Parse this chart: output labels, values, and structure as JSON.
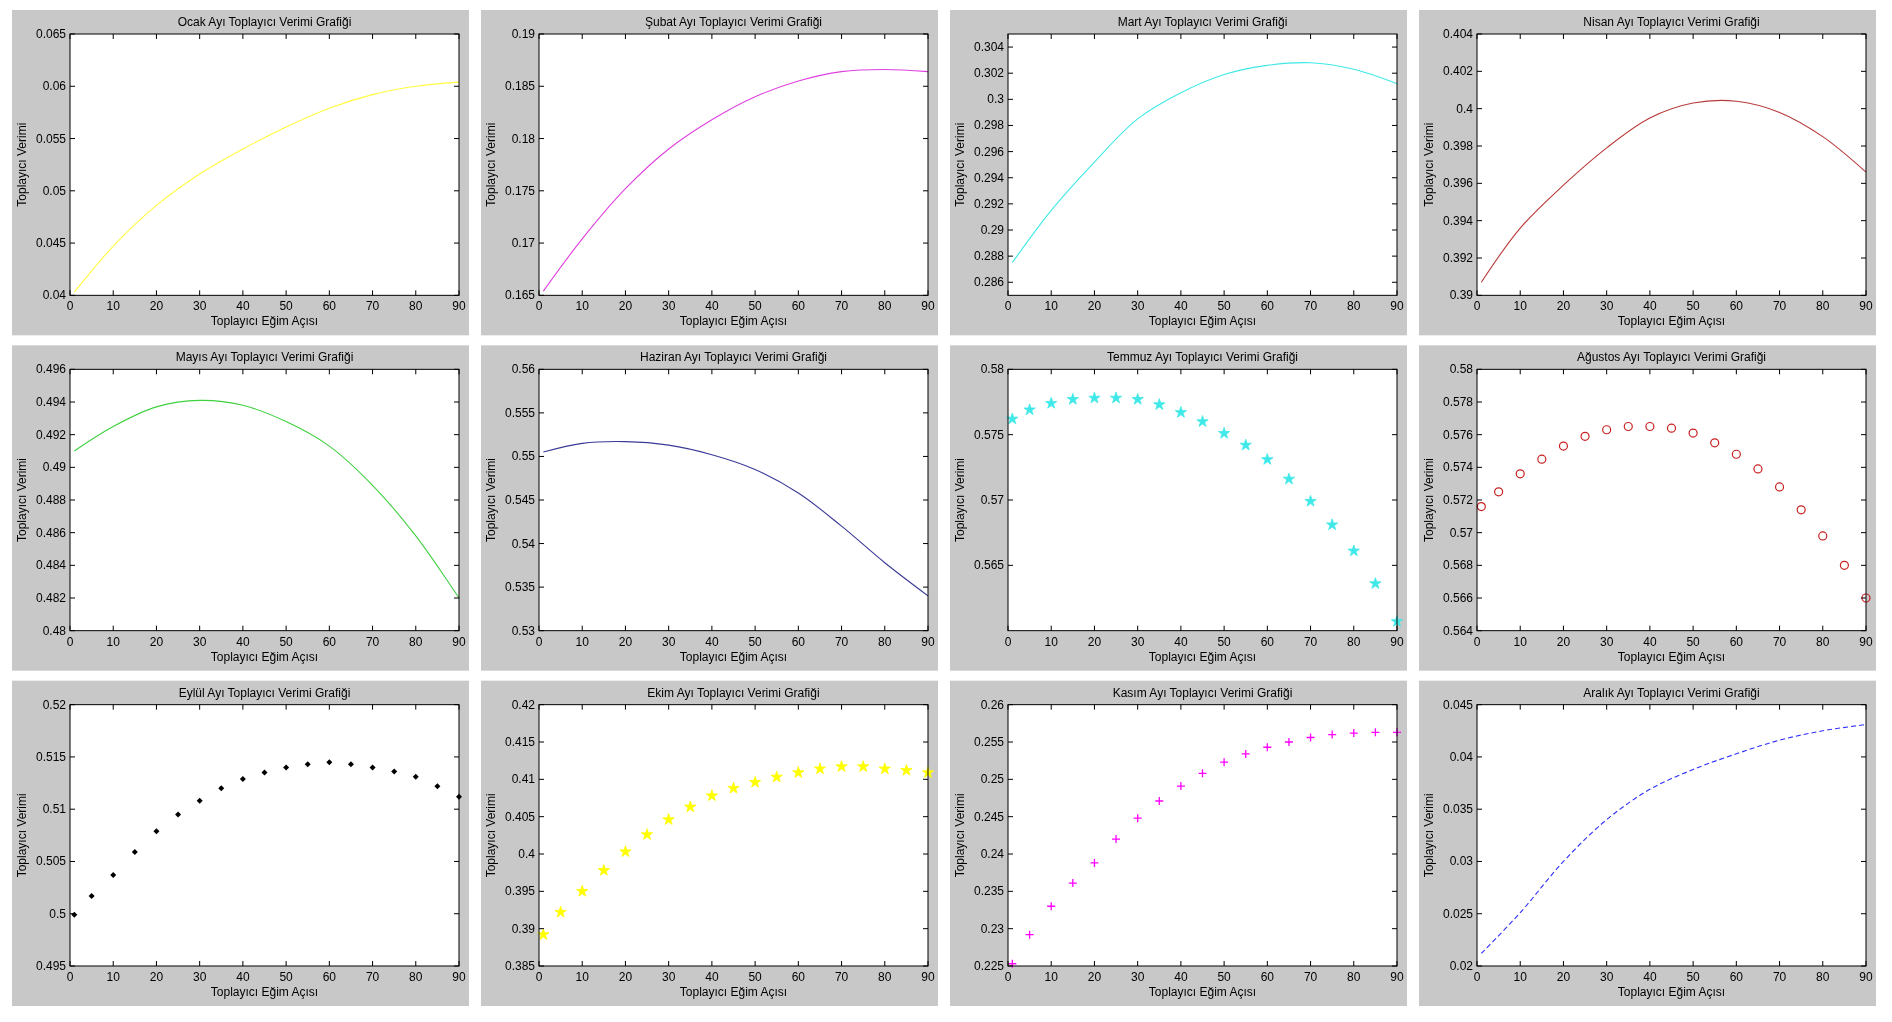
{
  "chart_data": [
    {
      "type": "line",
      "title": "Ocak Ayı Toplayıcı Verimi Grafiği",
      "xlabel": "Toplayıcı Eğim Açısı",
      "ylabel": "Toplayıcı Verimi",
      "x": [
        1,
        10,
        20,
        30,
        40,
        50,
        60,
        70,
        80,
        90
      ],
      "series": [
        {
          "color": "#ffff40",
          "values": [
            0.0403,
            0.0447,
            0.0486,
            0.0516,
            0.054,
            0.0561,
            0.0579,
            0.0592,
            0.06,
            0.0604
          ]
        }
      ],
      "xlim": [
        0,
        90
      ],
      "xticks": [
        0,
        10,
        20,
        30,
        40,
        50,
        60,
        70,
        80,
        90
      ],
      "ylim": [
        0.04,
        0.065
      ],
      "yticks": [
        0.04,
        0.045,
        0.05,
        0.055,
        0.06,
        0.065
      ]
    },
    {
      "type": "line",
      "title": "Şubat Ayı Toplayıcı Verimi Grafiği",
      "xlabel": "Toplayıcı Eğim Açısı",
      "ylabel": "Toplayıcı Verimi",
      "x": [
        1,
        10,
        20,
        30,
        40,
        50,
        60,
        70,
        80,
        90
      ],
      "series": [
        {
          "color": "#e040e0",
          "values": [
            0.1654,
            0.1704,
            0.1752,
            0.179,
            0.1818,
            0.184,
            0.1855,
            0.1864,
            0.1866,
            0.1864
          ]
        }
      ],
      "xlim": [
        0,
        90
      ],
      "xticks": [
        0,
        10,
        20,
        30,
        40,
        50,
        60,
        70,
        80,
        90
      ],
      "ylim": [
        0.165,
        0.19
      ],
      "yticks": [
        0.165,
        0.17,
        0.175,
        0.18,
        0.185,
        0.19
      ]
    },
    {
      "type": "line",
      "title": "Mart Ayı Toplayıcı Verimi Grafiği",
      "xlabel": "Toplayıcı Eğim Açısı",
      "ylabel": "Toplayıcı Verimi",
      "x": [
        1,
        10,
        20,
        30,
        40,
        50,
        60,
        70,
        80,
        90
      ],
      "series": [
        {
          "color": "#40e8e8",
          "values": [
            0.2875,
            0.2915,
            0.2952,
            0.2985,
            0.3005,
            0.3019,
            0.3026,
            0.3028,
            0.3023,
            0.3012
          ]
        }
      ],
      "xlim": [
        0,
        90
      ],
      "xticks": [
        0,
        10,
        20,
        30,
        40,
        50,
        60,
        70,
        80,
        90
      ],
      "ylim": [
        0.285,
        0.305
      ],
      "yticks": [
        0.286,
        0.288,
        0.29,
        0.292,
        0.294,
        0.296,
        0.298,
        0.3,
        0.302,
        0.304
      ]
    },
    {
      "type": "line",
      "title": "Nisan Ayı Toplayıcı Verimi Grafiği",
      "xlabel": "Toplayıcı Eğim Açısı",
      "ylabel": "Toplayıcı Verimi",
      "x": [
        1,
        10,
        20,
        30,
        40,
        50,
        60,
        70,
        80,
        90
      ],
      "series": [
        {
          "color": "#b83a3a",
          "values": [
            0.3907,
            0.3936,
            0.3959,
            0.3979,
            0.3995,
            0.4003,
            0.4004,
            0.3998,
            0.3985,
            0.3966
          ]
        }
      ],
      "xlim": [
        0,
        90
      ],
      "xticks": [
        0,
        10,
        20,
        30,
        40,
        50,
        60,
        70,
        80,
        90
      ],
      "ylim": [
        0.39,
        0.404
      ],
      "yticks": [
        0.39,
        0.392,
        0.394,
        0.396,
        0.398,
        0.4,
        0.402,
        0.404
      ]
    },
    {
      "type": "line",
      "title": "Mayıs Ayı Toplayıcı Verimi Grafiği",
      "xlabel": "Toplayıcı Eğim Açısı",
      "ylabel": "Toplayıcı Verimi",
      "x": [
        1,
        10,
        20,
        30,
        40,
        50,
        60,
        70,
        80,
        90
      ],
      "series": [
        {
          "color": "#40d040",
          "values": [
            0.491,
            0.4925,
            0.4937,
            0.4941,
            0.4938,
            0.4928,
            0.4913,
            0.4889,
            0.4858,
            0.482
          ]
        }
      ],
      "xlim": [
        0,
        90
      ],
      "xticks": [
        0,
        10,
        20,
        30,
        40,
        50,
        60,
        70,
        80,
        90
      ],
      "ylim": [
        0.48,
        0.496
      ],
      "yticks": [
        0.48,
        0.482,
        0.484,
        0.486,
        0.488,
        0.49,
        0.492,
        0.494,
        0.496
      ]
    },
    {
      "type": "line",
      "title": "Haziran Ayı Toplayıcı Verimi Grafiği",
      "xlabel": "Toplayıcı Eğim Açısı",
      "ylabel": "Toplayıcı Verimi",
      "x": [
        1,
        10,
        20,
        30,
        40,
        50,
        60,
        70,
        80,
        90
      ],
      "series": [
        {
          "color": "#3a3a98",
          "values": [
            0.5505,
            0.5515,
            0.5517,
            0.5513,
            0.5502,
            0.5485,
            0.5458,
            0.542,
            0.5378,
            0.534
          ]
        }
      ],
      "xlim": [
        0,
        90
      ],
      "xticks": [
        0,
        10,
        20,
        30,
        40,
        50,
        60,
        70,
        80,
        90
      ],
      "ylim": [
        0.53,
        0.56
      ],
      "yticks": [
        0.53,
        0.535,
        0.54,
        0.545,
        0.55,
        0.555,
        0.56
      ]
    },
    {
      "type": "scatter",
      "marker": "star",
      "title": "Temmuz Ayı Toplayıcı Verimi Grafiği",
      "xlabel": "Toplayıcı Eğim Açısı",
      "ylabel": "Toplayıcı Verimi",
      "x": [
        1,
        5,
        10,
        15,
        20,
        25,
        30,
        35,
        40,
        45,
        50,
        55,
        60,
        65,
        70,
        75,
        80,
        85,
        90
      ],
      "series": [
        {
          "color": "#40e8e8",
          "values": [
            0.5762,
            0.5769,
            0.5774,
            0.5777,
            0.5778,
            0.5778,
            0.5777,
            0.5773,
            0.5767,
            0.576,
            0.5751,
            0.5742,
            0.5731,
            0.5716,
            0.5699,
            0.5681,
            0.5661,
            0.5636,
            0.5607
          ]
        }
      ],
      "xlim": [
        0,
        90
      ],
      "xticks": [
        0,
        10,
        20,
        30,
        40,
        50,
        60,
        70,
        80,
        90
      ],
      "ylim": [
        0.56,
        0.58
      ],
      "yticks": [
        0.565,
        0.57,
        0.575,
        0.58
      ]
    },
    {
      "type": "scatter",
      "marker": "circle",
      "title": "Ağustos Ayı Toplayıcı Verimi Grafiği",
      "xlabel": "Toplayıcı Eğim Açısı",
      "ylabel": "Toplayıcı Verimi",
      "x": [
        1,
        5,
        10,
        15,
        20,
        25,
        30,
        35,
        40,
        45,
        50,
        55,
        60,
        65,
        70,
        75,
        80,
        85,
        90
      ],
      "series": [
        {
          "color": "#c82020",
          "values": [
            0.5716,
            0.5725,
            0.5736,
            0.5745,
            0.5753,
            0.5759,
            0.5763,
            0.5765,
            0.5765,
            0.5764,
            0.5761,
            0.5755,
            0.5748,
            0.5739,
            0.5728,
            0.5714,
            0.5698,
            0.568,
            0.566
          ]
        }
      ],
      "xlim": [
        0,
        90
      ],
      "xticks": [
        0,
        10,
        20,
        30,
        40,
        50,
        60,
        70,
        80,
        90
      ],
      "ylim": [
        0.564,
        0.58
      ],
      "yticks": [
        0.564,
        0.566,
        0.568,
        0.57,
        0.572,
        0.574,
        0.576,
        0.578,
        0.58
      ]
    },
    {
      "type": "scatter",
      "marker": "diamond",
      "title": "Eylül Ayı Toplayıcı Verimi Grafiği",
      "xlabel": "Toplayıcı Eğim Açısı",
      "ylabel": "Toplayıcı Verimi",
      "x": [
        1,
        5,
        10,
        15,
        20,
        25,
        30,
        35,
        40,
        45,
        50,
        55,
        60,
        65,
        70,
        75,
        80,
        85,
        90
      ],
      "series": [
        {
          "color": "#000000",
          "values": [
            0.4999,
            0.5017,
            0.5037,
            0.5059,
            0.5079,
            0.5095,
            0.5108,
            0.512,
            0.5129,
            0.5135,
            0.514,
            0.5143,
            0.5145,
            0.5143,
            0.514,
            0.5136,
            0.5131,
            0.5122,
            0.5112
          ]
        }
      ],
      "xlim": [
        0,
        90
      ],
      "xticks": [
        0,
        10,
        20,
        30,
        40,
        50,
        60,
        70,
        80,
        90
      ],
      "ylim": [
        0.495,
        0.52
      ],
      "yticks": [
        0.495,
        0.5,
        0.505,
        0.51,
        0.515,
        0.52
      ]
    },
    {
      "type": "scatter",
      "marker": "star",
      "title": "Ekim Ayı Toplayıcı Verimi Grafiği",
      "xlabel": "Toplayıcı Eğim Açısı",
      "ylabel": "Toplayıcı Verimi",
      "x": [
        1,
        5,
        10,
        15,
        20,
        25,
        30,
        35,
        40,
        45,
        50,
        55,
        60,
        65,
        70,
        75,
        80,
        85,
        90
      ],
      "series": [
        {
          "color": "#ffff00",
          "values": [
            0.3892,
            0.3922,
            0.395,
            0.3978,
            0.4003,
            0.4026,
            0.4046,
            0.4063,
            0.4078,
            0.4088,
            0.4096,
            0.4103,
            0.4109,
            0.4114,
            0.4117,
            0.4117,
            0.4114,
            0.4112,
            0.4109
          ]
        }
      ],
      "xlim": [
        0,
        90
      ],
      "xticks": [
        0,
        10,
        20,
        30,
        40,
        50,
        60,
        70,
        80,
        90
      ],
      "ylim": [
        0.385,
        0.42
      ],
      "yticks": [
        0.385,
        0.39,
        0.395,
        0.4,
        0.405,
        0.41,
        0.415,
        0.42
      ]
    },
    {
      "type": "scatter",
      "marker": "cross",
      "title": "Kasım Ayı Toplayıcı Verimi Grafiği",
      "xlabel": "Toplayıcı Eğim Açısı",
      "ylabel": "Toplayıcı Verimi",
      "x": [
        1,
        5,
        10,
        15,
        20,
        25,
        30,
        35,
        40,
        45,
        50,
        55,
        60,
        65,
        70,
        75,
        80,
        85,
        90
      ],
      "series": [
        {
          "color": "#ff00ff",
          "values": [
            0.2253,
            0.2292,
            0.233,
            0.2361,
            0.2388,
            0.242,
            0.2448,
            0.2471,
            0.2491,
            0.2508,
            0.2523,
            0.2534,
            0.2543,
            0.255,
            0.2556,
            0.256,
            0.2562,
            0.2563,
            0.2563
          ]
        }
      ],
      "xlim": [
        0,
        90
      ],
      "xticks": [
        0,
        10,
        20,
        30,
        40,
        50,
        60,
        70,
        80,
        90
      ],
      "ylim": [
        0.225,
        0.26
      ],
      "yticks": [
        0.225,
        0.23,
        0.235,
        0.24,
        0.245,
        0.25,
        0.255,
        0.26
      ]
    },
    {
      "type": "line",
      "line_style": "dashed",
      "title": "Aralık Ayı Toplayıcı Verimi Grafiği",
      "xlabel": "Toplayıcı Eğim Açısı",
      "ylabel": "Toplayıcı Verimi",
      "x": [
        1,
        10,
        20,
        30,
        40,
        50,
        60,
        70,
        80,
        90
      ],
      "series": [
        {
          "color": "#3030ff",
          "values": [
            0.0212,
            0.0251,
            0.03,
            0.034,
            0.0369,
            0.0388,
            0.0403,
            0.0416,
            0.0425,
            0.0431
          ]
        }
      ],
      "xlim": [
        0,
        90
      ],
      "xticks": [
        0,
        10,
        20,
        30,
        40,
        50,
        60,
        70,
        80,
        90
      ],
      "ylim": [
        0.02,
        0.045
      ],
      "yticks": [
        0.02,
        0.025,
        0.03,
        0.035,
        0.04,
        0.045
      ]
    }
  ]
}
